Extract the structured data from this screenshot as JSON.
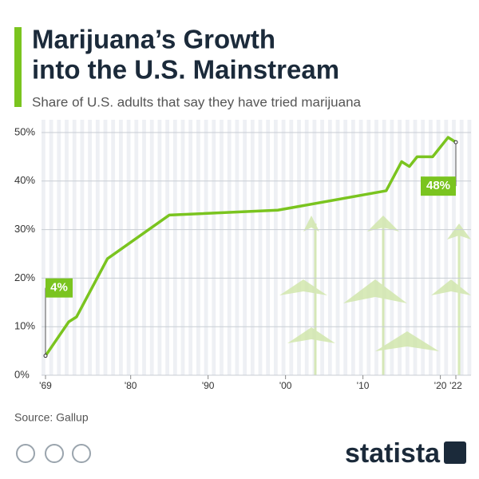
{
  "chart_data": {
    "type": "line",
    "title": [
      "Marijuana’s Growth",
      "into the U.S. Mainstream"
    ],
    "subtitle": "Share of U.S. adults that say they have tried marijuana",
    "x": [
      1969,
      1972,
      1973,
      1977,
      1985,
      1999,
      2013,
      2015,
      2016,
      2017,
      2019,
      2021,
      2022
    ],
    "series": [
      {
        "name": "Share of U.S. adults that have tried marijuana",
        "color": "#7ac41f",
        "values": [
          4,
          11,
          12,
          24,
          33,
          34,
          38,
          44,
          43,
          45,
          45,
          49,
          48
        ],
        "value_labels": [
          "4%",
          null,
          null,
          null,
          null,
          null,
          null,
          null,
          null,
          null,
          null,
          null,
          "48%"
        ]
      }
    ],
    "xlim": [
      1969,
      2022
    ],
    "xticks": [
      {
        "value": 1969,
        "label": "'69"
      },
      {
        "value": 1980,
        "label": "'80"
      },
      {
        "value": 1990,
        "label": "'90"
      },
      {
        "value": 2000,
        "label": "'00"
      },
      {
        "value": 2010,
        "label": "'10"
      },
      {
        "value": 2020,
        "label": "'20"
      },
      {
        "value": 2022,
        "label": "'22"
      }
    ],
    "ylim": [
      0,
      50
    ],
    "yticks": [
      {
        "value": 0,
        "label": "0%"
      },
      {
        "value": 10,
        "label": "10%"
      },
      {
        "value": 20,
        "label": "20%"
      },
      {
        "value": 30,
        "label": "30%"
      },
      {
        "value": 40,
        "label": "40%"
      },
      {
        "value": 50,
        "label": "50%"
      }
    ],
    "grid": true,
    "source": "Source: Gallup",
    "brand": "statista"
  }
}
